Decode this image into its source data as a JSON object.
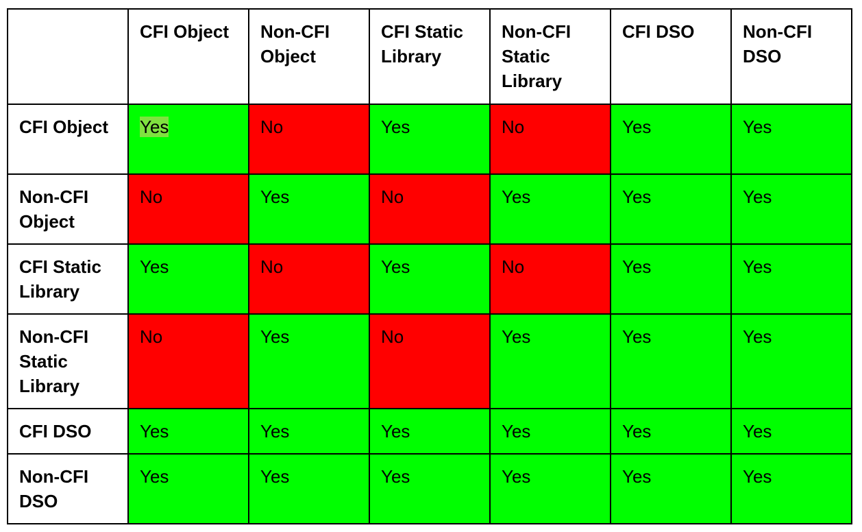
{
  "table": {
    "columns": [
      "CFI Object",
      "Non-CFI Object",
      "CFI Static Library",
      "Non-CFI Static Library",
      "CFI DSO",
      "Non-CFI DSO"
    ],
    "rows": [
      {
        "label": "CFI Object",
        "cells": [
          "Yes",
          "No",
          "Yes",
          "No",
          "Yes",
          "Yes"
        ]
      },
      {
        "label": "Non-CFI Object",
        "cells": [
          "No",
          "Yes",
          "No",
          "Yes",
          "Yes",
          "Yes"
        ]
      },
      {
        "label": "CFI Static Library",
        "cells": [
          "Yes",
          "No",
          "Yes",
          "No",
          "Yes",
          "Yes"
        ]
      },
      {
        "label": "Non-CFI Static Library",
        "cells": [
          "No",
          "Yes",
          "No",
          "Yes",
          "Yes",
          "Yes"
        ]
      },
      {
        "label": "CFI DSO",
        "cells": [
          "Yes",
          "Yes",
          "Yes",
          "Yes",
          "Yes",
          "Yes"
        ]
      },
      {
        "label": "Non-CFI DSO",
        "cells": [
          "Yes",
          "Yes",
          "Yes",
          "Yes",
          "Yes",
          "Yes"
        ]
      }
    ],
    "cell_colors": {
      "Yes": "#00ff00",
      "No": "#ff0000"
    }
  }
}
